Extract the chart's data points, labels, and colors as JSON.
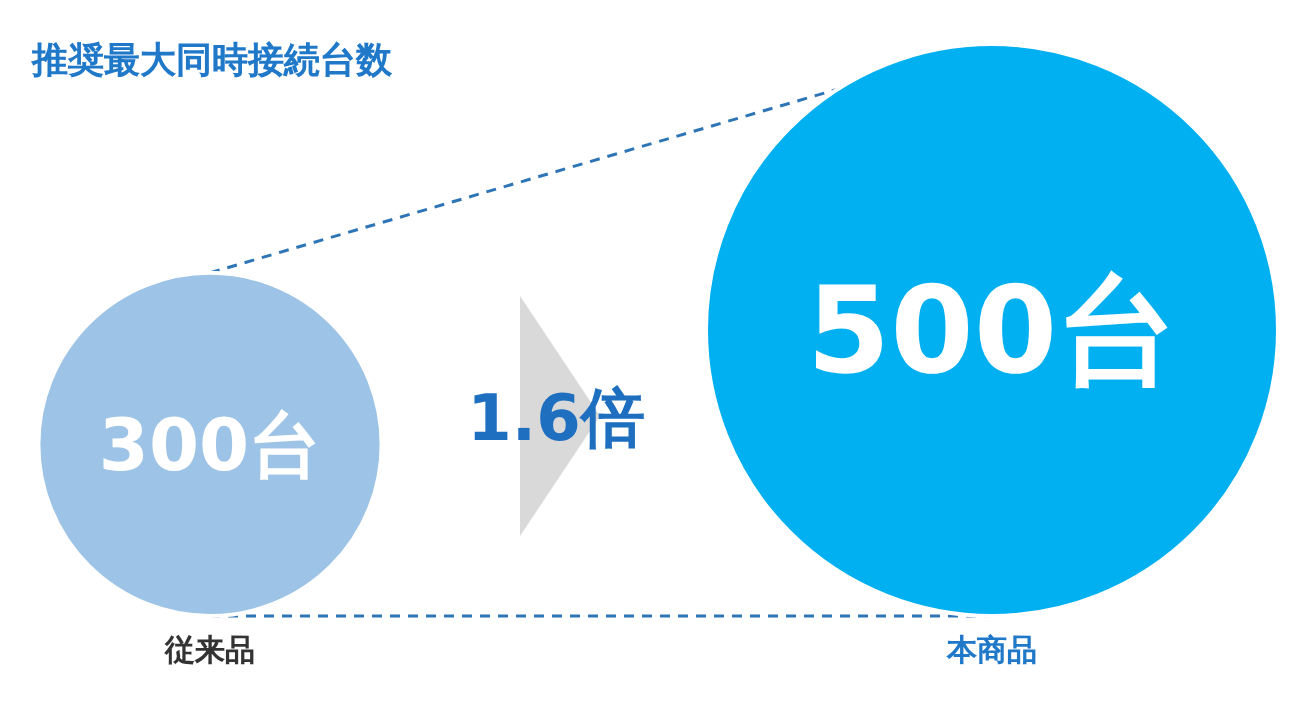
{
  "chart_data": {
    "type": "other",
    "title": "推奨最大同時接続台数",
    "categories": [
      "従来品",
      "本商品"
    ],
    "values": [
      300,
      500
    ],
    "value_labels": [
      "300台",
      "500台"
    ],
    "colors": [
      "#9dc3e6",
      "#00b0f0"
    ],
    "annotations": [
      "1.6倍"
    ]
  }
}
